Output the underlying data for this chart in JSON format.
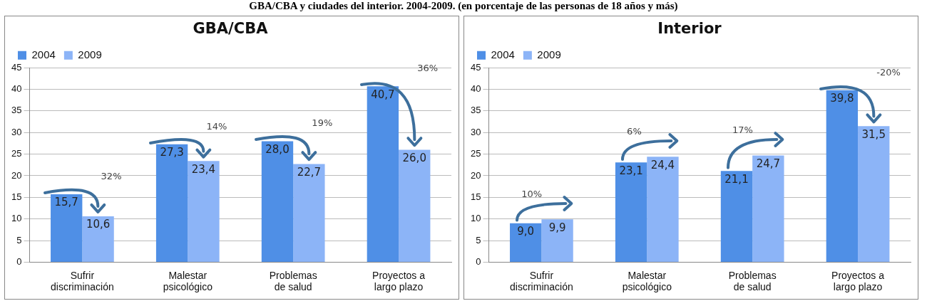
{
  "chart_data": [
    {
      "type": "bar",
      "title": "GBA/CBA",
      "categories": [
        "Sufrir discriminación",
        "Malestar psicológico",
        "Problemas de salud",
        "Proyectos a largo plazo"
      ],
      "series": [
        {
          "name": "2004",
          "color": "#4f8fe6",
          "values": [
            15.7,
            27.3,
            28.0,
            40.7
          ],
          "value_labels": [
            "15,7",
            "27,3",
            "28,0",
            "40,7"
          ]
        },
        {
          "name": "2009",
          "color": "#8cb4f7",
          "values": [
            10.6,
            23.4,
            22.7,
            26.0
          ],
          "value_labels": [
            "10,6",
            "23,4",
            "22,7",
            "26,0"
          ]
        }
      ],
      "ylim": [
        0,
        45
      ],
      "yticks": [
        0,
        5,
        10,
        15,
        20,
        25,
        30,
        35,
        40,
        45
      ],
      "grid": "y",
      "legend": "top left",
      "annotations": [
        "GBA/CBA y ciudades del interior. 2004-2009. (en porcentaje de las personas de 18 años y más)",
        "32%",
        "14%",
        "19%",
        "36%"
      ]
    },
    {
      "type": "bar",
      "title": "Interior",
      "categories": [
        "Sufrir discriminación",
        "Malestar psicológico",
        "Problemas de salud",
        "Proyectos a largo plazo"
      ],
      "series": [
        {
          "name": "2004",
          "color": "#4f8fe6",
          "values": [
            9.0,
            23.1,
            21.1,
            39.8
          ],
          "value_labels": [
            "9,0",
            "23,1",
            "21,1",
            "39,8"
          ]
        },
        {
          "name": "2009",
          "color": "#8cb4f7",
          "values": [
            9.9,
            24.4,
            24.7,
            31.5
          ],
          "value_labels": [
            "9,9",
            "24,4",
            "24,7",
            "31,5"
          ]
        }
      ],
      "ylim": [
        0,
        45
      ],
      "yticks": [
        0,
        5,
        10,
        15,
        20,
        25,
        30,
        35,
        40,
        45
      ],
      "grid": "y",
      "legend": "top left",
      "annotations": [
        "10%",
        "6%",
        "17%",
        "-20%"
      ]
    }
  ]
}
